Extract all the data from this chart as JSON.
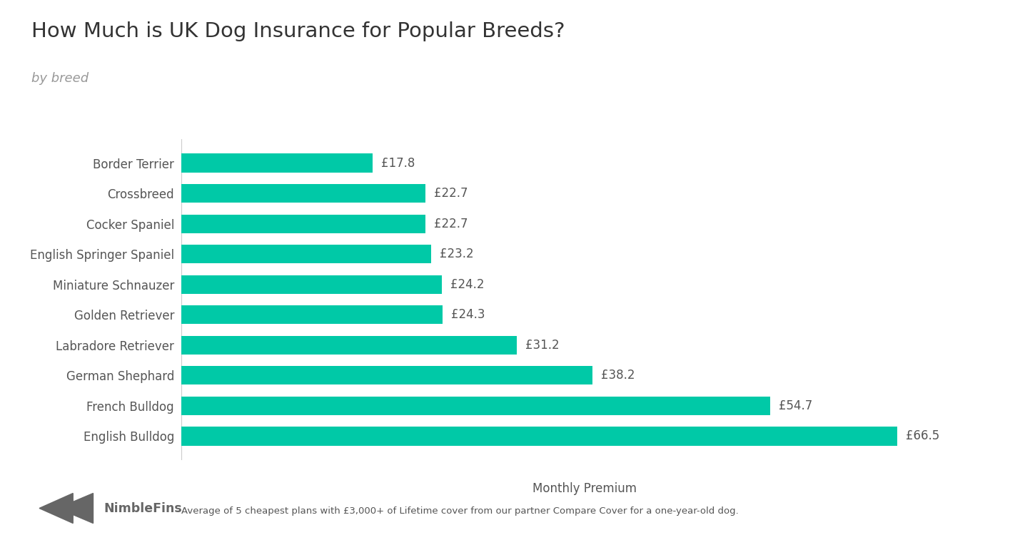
{
  "title": "How Much is UK Dog Insurance for Popular Breeds?",
  "subtitle": "by breed",
  "xlabel": "Monthly Premium",
  "bar_color": "#00C9A7",
  "footer_note": "Average of 5 cheapest plans with £3,000+ of Lifetime cover from our partner Compare Cover for a one-year-old dog.",
  "categories": [
    "Border Terrier",
    "Crossbreed",
    "Cocker Spaniel",
    "English Springer Spaniel",
    "Miniature Schnauzer",
    "Golden Retriever",
    "Labradore Retriever",
    "German Shephard",
    "French Bulldog",
    "English Bulldog"
  ],
  "values": [
    17.8,
    22.7,
    22.7,
    23.2,
    24.2,
    24.3,
    31.2,
    38.2,
    54.7,
    66.5
  ],
  "xlim": [
    0,
    75
  ],
  "title_fontsize": 21,
  "subtitle_fontsize": 13,
  "tick_fontsize": 12,
  "value_fontsize": 12,
  "xlabel_fontsize": 12,
  "background_color": "#ffffff",
  "text_color": "#555555",
  "title_color": "#333333",
  "subtitle_color": "#999999",
  "logo_color": "#666666"
}
